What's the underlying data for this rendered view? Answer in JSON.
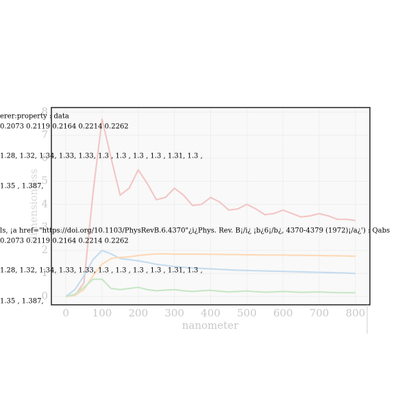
{
  "chart_data": {
    "type": "line",
    "xlabel": "nanometer",
    "ylabel": "dimensionless",
    "x": [
      0,
      25,
      50,
      75,
      100,
      125,
      150,
      175,
      200,
      225,
      250,
      275,
      300,
      325,
      350,
      375,
      400,
      425,
      450,
      475,
      500,
      525,
      550,
      575,
      600,
      625,
      650,
      675,
      700,
      725,
      750,
      775,
      800
    ],
    "series": [
      {
        "color": "#f3c6c6",
        "values": [
          0,
          0.05,
          0.6,
          4.5,
          7.7,
          6.0,
          4.4,
          4.7,
          5.5,
          4.9,
          4.2,
          4.3,
          4.7,
          4.4,
          3.95,
          4.0,
          4.3,
          4.1,
          3.75,
          3.8,
          4.0,
          3.8,
          3.55,
          3.6,
          3.75,
          3.6,
          3.45,
          3.5,
          3.6,
          3.5,
          3.35,
          3.35,
          3.3
        ]
      },
      {
        "color": "#c6dcee",
        "values": [
          0,
          0.3,
          0.9,
          1.6,
          2.0,
          1.85,
          1.65,
          1.6,
          1.55,
          1.48,
          1.4,
          1.35,
          1.3,
          1.27,
          1.24,
          1.22,
          1.2,
          1.18,
          1.16,
          1.14,
          1.13,
          1.12,
          1.11,
          1.1,
          1.09,
          1.08,
          1.07,
          1.06,
          1.05,
          1.04,
          1.03,
          1.02,
          1.0
        ]
      },
      {
        "color": "#fddab8",
        "values": [
          0,
          0.05,
          0.3,
          0.9,
          1.4,
          1.65,
          1.7,
          1.72,
          1.78,
          1.82,
          1.85,
          1.85,
          1.84,
          1.84,
          1.84,
          1.84,
          1.83,
          1.83,
          1.82,
          1.82,
          1.81,
          1.81,
          1.8,
          1.8,
          1.8,
          1.79,
          1.79,
          1.78,
          1.78,
          1.77,
          1.77,
          1.76,
          1.75
        ]
      },
      {
        "color": "#c8e7c8",
        "values": [
          0,
          0.1,
          0.4,
          0.75,
          0.75,
          0.35,
          0.3,
          0.35,
          0.4,
          0.3,
          0.25,
          0.28,
          0.3,
          0.25,
          0.22,
          0.25,
          0.27,
          0.23,
          0.2,
          0.22,
          0.24,
          0.21,
          0.19,
          0.2,
          0.22,
          0.2,
          0.18,
          0.19,
          0.2,
          0.18,
          0.17,
          0.17,
          0.16
        ]
      }
    ],
    "xlim": [
      -40,
      840
    ],
    "xticks": [
      0,
      100,
      200,
      300,
      400,
      500,
      600,
      700,
      800
    ],
    "ylim": [
      -0.36,
      8.2
    ],
    "yticks": [
      0,
      1,
      2,
      3,
      4,
      5,
      6,
      7,
      8
    ],
    "grid": true,
    "annotations": [
      "erer:property : data",
      "0.2073 0.2119 0.2164 0.2214 0.2262",
      "1.28, 1.32, 1.34, 1.33, 1.33, 1.3 , 1.3 , 1.3 , 1.3 , 1.31, 1.3 ,",
      "1.35 ,  1.387,",
      "ls, ¡a href=\"https://doi.org/10.1103/PhysRevB.6.4370\"¿i¿Phys. Rev. B¡/i¿ ¡b¿6¡/b¿, 4370-4379 (1972)¡/a¿') : Qabs",
      "0.2073 0.2119 0.2164 0.2214 0.2262",
      "1.28, 1.32, 1.34, 1.33, 1.33, 1.3 , 1.3 , 1.3 , 1.3 , 1.31, 1.3 ,",
      "1.35 ,  1.387,"
    ]
  }
}
